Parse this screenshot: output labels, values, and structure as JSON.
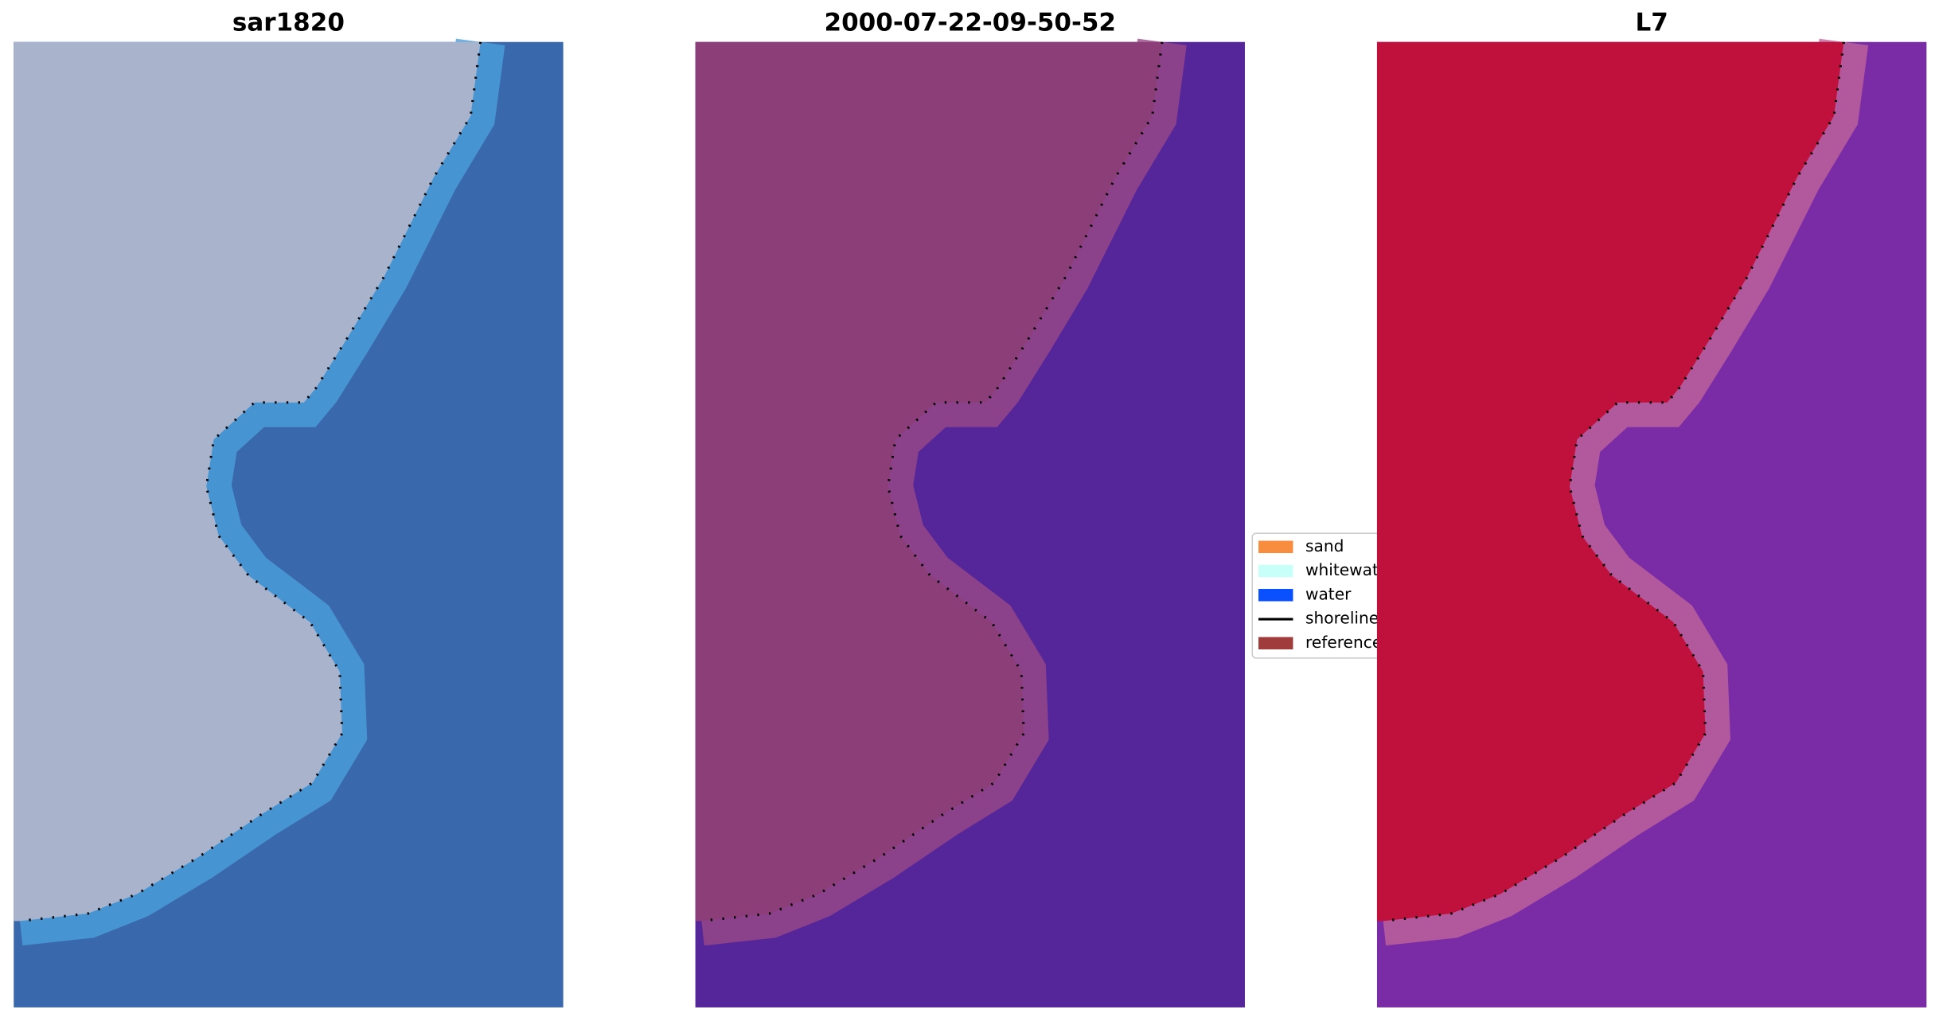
{
  "panels": [
    {
      "title": "sar1820",
      "land": "#a9b4cc",
      "water": "#3a68ac",
      "shore": "#4aa0dc"
    },
    {
      "title": "2000-07-22-09-50-52",
      "land": "#8c3e78",
      "water": "#55259a",
      "shore": "#9a4a86"
    },
    {
      "title": "L7",
      "land": "#c0103c",
      "water": "#7a2ba6",
      "shore": "#c0649a"
    }
  ],
  "legend": [
    {
      "label": "sand",
      "color": "#f98d3f",
      "kind": "patch"
    },
    {
      "label": "whitewater",
      "color": "#c8fff8",
      "kind": "patch"
    },
    {
      "label": "water",
      "color": "#0a50ff",
      "kind": "patch"
    },
    {
      "label": "shoreline",
      "color": "#000000",
      "kind": "line"
    },
    {
      "label": "reference shoreline",
      "color": "#a03c3c",
      "kind": "patch"
    }
  ]
}
